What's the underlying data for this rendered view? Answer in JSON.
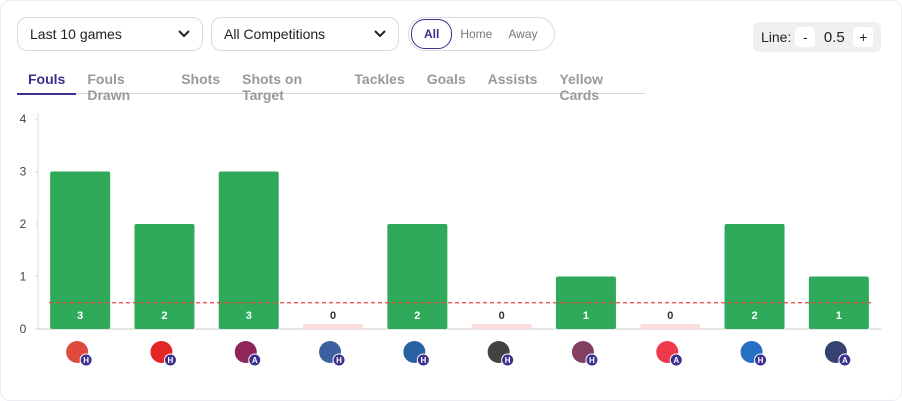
{
  "filters": {
    "games": "Last 10 games",
    "competitions": "All Competitions",
    "venue": [
      "All",
      "Home",
      "Away"
    ]
  },
  "line": {
    "label": "Line:",
    "minus": "-",
    "value": 0.5,
    "plus": "+"
  },
  "tabs": [
    "Fouls",
    "Fouls Drawn",
    "Shots",
    "Shots on Target",
    "Tackles",
    "Goals",
    "Assists",
    "Yellow Cards"
  ],
  "chart_data": {
    "type": "bar",
    "categories": [
      "H",
      "H",
      "A",
      "H",
      "H",
      "H",
      "H",
      "A",
      "H",
      "A"
    ],
    "values": [
      3,
      2,
      3,
      0,
      2,
      0,
      1,
      0,
      2,
      1
    ],
    "color": "#2eaa5a",
    "zero_color": "#fcdcdc",
    "threshold_color": "#e8463c",
    "ylim": [
      0,
      4
    ],
    "yticks": [
      0,
      1,
      2,
      3,
      4
    ]
  }
}
